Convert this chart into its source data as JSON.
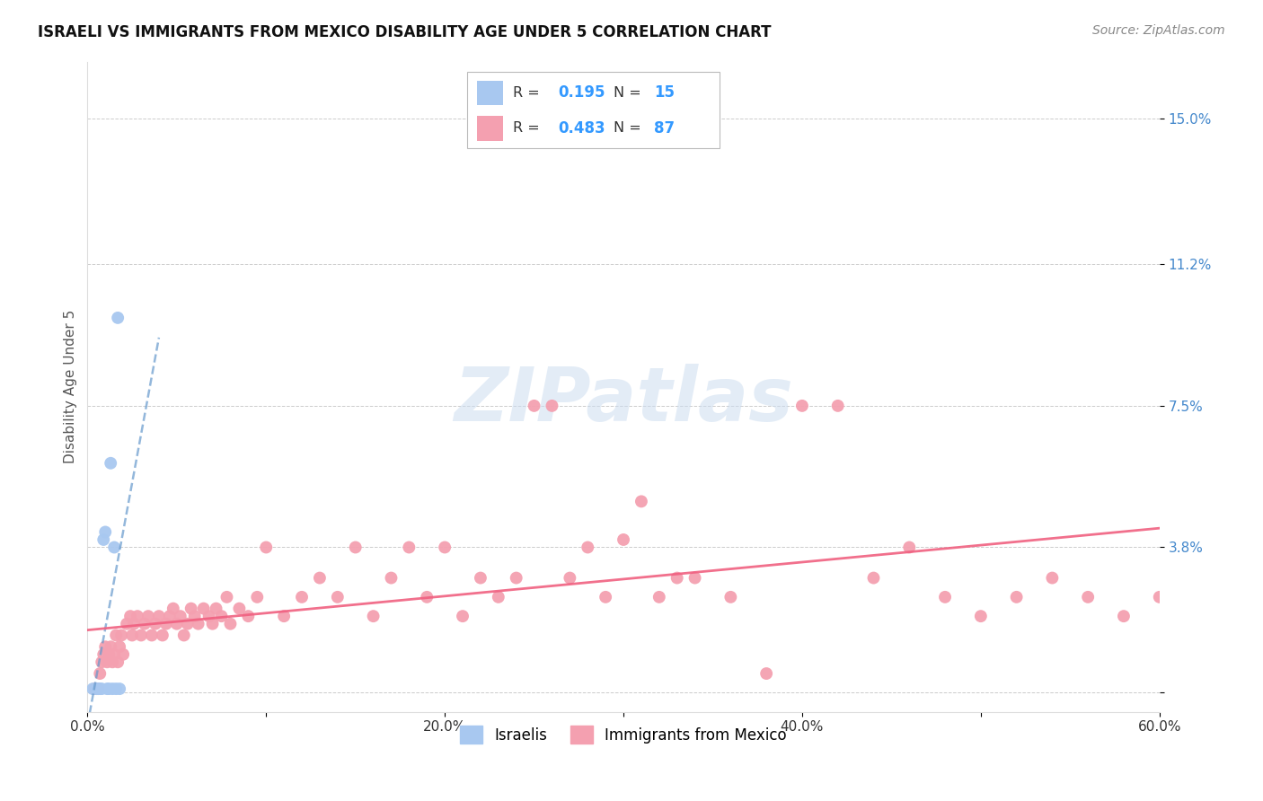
{
  "title": "ISRAELI VS IMMIGRANTS FROM MEXICO DISABILITY AGE UNDER 5 CORRELATION CHART",
  "source": "Source: ZipAtlas.com",
  "ylabel": "Disability Age Under 5",
  "xlim": [
    0.0,
    0.6
  ],
  "ylim": [
    -0.005,
    0.165
  ],
  "yticks": [
    0.0,
    0.038,
    0.075,
    0.112,
    0.15
  ],
  "ytick_labels": [
    "",
    "3.8%",
    "7.5%",
    "11.2%",
    "15.0%"
  ],
  "xticks": [
    0.0,
    0.1,
    0.2,
    0.3,
    0.4,
    0.5,
    0.6
  ],
  "xtick_labels": [
    "0.0%",
    "",
    "20.0%",
    "",
    "40.0%",
    "",
    "60.0%"
  ],
  "israeli_R": 0.195,
  "israeli_N": 15,
  "mexico_R": 0.483,
  "mexico_N": 87,
  "israeli_color": "#a8c8f0",
  "mexico_color": "#f4a0b0",
  "israeli_trend_color": "#6699cc",
  "mexico_trend_color": "#f06080",
  "background_color": "#ffffff",
  "watermark": "ZIPatlas",
  "watermark_color": "#ccddf0",
  "legend_label_israeli": "Israelis",
  "legend_label_mexico": "Immigrants from Mexico",
  "israeli_x": [
    0.003,
    0.005,
    0.006,
    0.007,
    0.008,
    0.009,
    0.01,
    0.011,
    0.012,
    0.013,
    0.014,
    0.015,
    0.016,
    0.017,
    0.018
  ],
  "israeli_y": [
    0.001,
    0.001,
    0.001,
    0.001,
    0.001,
    0.04,
    0.042,
    0.001,
    0.001,
    0.06,
    0.001,
    0.038,
    0.001,
    0.098,
    0.001
  ],
  "mexico_x": [
    0.004,
    0.005,
    0.006,
    0.007,
    0.008,
    0.009,
    0.01,
    0.011,
    0.012,
    0.013,
    0.014,
    0.015,
    0.016,
    0.017,
    0.018,
    0.019,
    0.02,
    0.022,
    0.024,
    0.025,
    0.026,
    0.028,
    0.03,
    0.032,
    0.034,
    0.036,
    0.038,
    0.04,
    0.042,
    0.044,
    0.046,
    0.048,
    0.05,
    0.052,
    0.054,
    0.056,
    0.058,
    0.06,
    0.062,
    0.065,
    0.068,
    0.07,
    0.072,
    0.075,
    0.078,
    0.08,
    0.085,
    0.09,
    0.095,
    0.1,
    0.11,
    0.12,
    0.13,
    0.14,
    0.15,
    0.16,
    0.17,
    0.18,
    0.19,
    0.2,
    0.21,
    0.22,
    0.23,
    0.24,
    0.25,
    0.26,
    0.27,
    0.28,
    0.29,
    0.3,
    0.31,
    0.32,
    0.33,
    0.34,
    0.36,
    0.38,
    0.4,
    0.42,
    0.44,
    0.46,
    0.48,
    0.5,
    0.52,
    0.54,
    0.56,
    0.58,
    0.6
  ],
  "mexico_y": [
    0.001,
    0.001,
    0.001,
    0.005,
    0.008,
    0.01,
    0.012,
    0.008,
    0.01,
    0.012,
    0.008,
    0.01,
    0.015,
    0.008,
    0.012,
    0.015,
    0.01,
    0.018,
    0.02,
    0.015,
    0.018,
    0.02,
    0.015,
    0.018,
    0.02,
    0.015,
    0.018,
    0.02,
    0.015,
    0.018,
    0.02,
    0.022,
    0.018,
    0.02,
    0.015,
    0.018,
    0.022,
    0.02,
    0.018,
    0.022,
    0.02,
    0.018,
    0.022,
    0.02,
    0.025,
    0.018,
    0.022,
    0.02,
    0.025,
    0.038,
    0.02,
    0.025,
    0.03,
    0.025,
    0.038,
    0.02,
    0.03,
    0.038,
    0.025,
    0.038,
    0.02,
    0.03,
    0.025,
    0.03,
    0.075,
    0.075,
    0.03,
    0.038,
    0.025,
    0.04,
    0.05,
    0.025,
    0.03,
    0.03,
    0.025,
    0.005,
    0.075,
    0.075,
    0.03,
    0.038,
    0.025,
    0.02,
    0.025,
    0.03,
    0.025,
    0.02,
    0.025
  ]
}
